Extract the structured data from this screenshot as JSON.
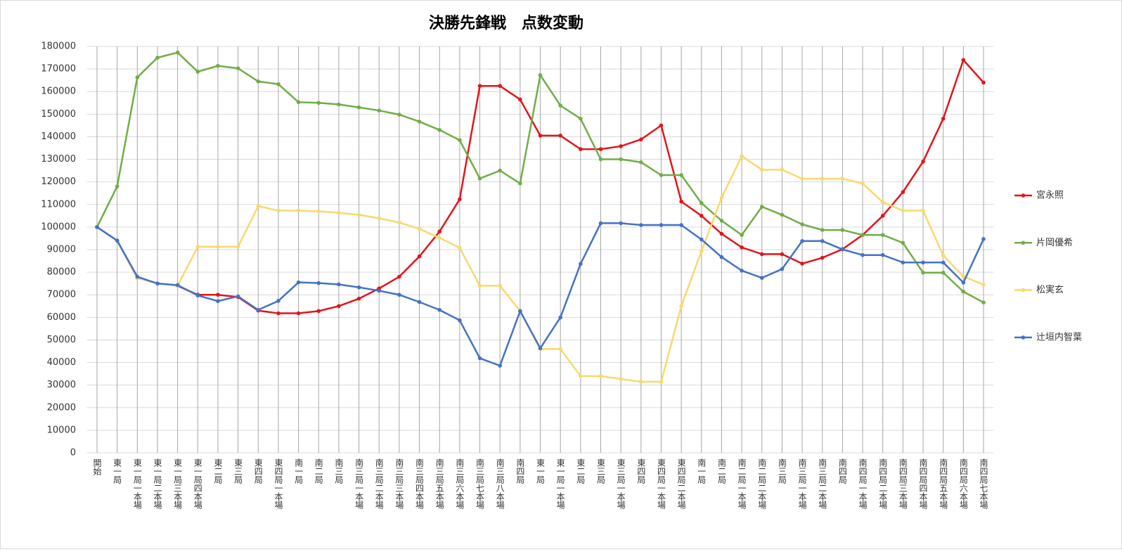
{
  "chart_data": {
    "type": "line",
    "title": "決勝先鋒戦　点数変動",
    "categories": [
      "開始",
      "東一局",
      "東一局一本場",
      "東一局二本場",
      "東一局三本場",
      "東一局四本場",
      "東二局",
      "東三局",
      "東四局",
      "東四局一本場",
      "南一局",
      "南二局",
      "南三局",
      "南三局一本場",
      "南三局二本場",
      "南三局三本場",
      "南三局四本場",
      "南三局五本場",
      "南三局六本場",
      "南三局七本場",
      "南三局八本場",
      "南四局",
      "東一局",
      "東一局一本場",
      "東二局",
      "東三局",
      "東三局一本場",
      "東四局",
      "東四局一本場",
      "東四局二本場",
      "南一局",
      "南二局",
      "南二局一本場",
      "南二局二本場",
      "南三局",
      "南三局一本場",
      "南三局二本場",
      "南四局",
      "南四局一本場",
      "南四局二本場",
      "南四局三本場",
      "南四局四本場",
      "南四局五本場",
      "南四局六本場",
      "南四局七本場"
    ],
    "series": [
      {
        "name": "宮永照",
        "color": "#e3141b",
        "values": [
          100000,
          94000,
          77500,
          75000,
          74000,
          70000,
          70000,
          69000,
          63000,
          61800,
          61800,
          62800,
          65000,
          68300,
          72800,
          78000,
          87000,
          98000,
          112300,
          162500,
          162500,
          156500,
          140500,
          140500,
          134500,
          134500,
          135800,
          138800,
          145000,
          111300,
          105000,
          97000,
          91000,
          88000,
          88000,
          83800,
          86400,
          90200,
          96500,
          105000,
          115500,
          129000,
          148000,
          174000,
          164000
        ]
      },
      {
        "name": "片岡優希",
        "color": "#70ad47",
        "values": [
          100000,
          118000,
          166300,
          175000,
          177300,
          168800,
          171400,
          170300,
          164500,
          163300,
          155300,
          155000,
          154300,
          153000,
          151600,
          149800,
          146700,
          143000,
          138500,
          121500,
          125000,
          119300,
          167300,
          153800,
          148000,
          130000,
          130000,
          128700,
          123000,
          123000,
          110600,
          102800,
          96500,
          109000,
          105400,
          101200,
          98700,
          98700,
          96500,
          96500,
          93000,
          79800,
          79800,
          71400,
          66600
        ]
      },
      {
        "name": "松実玄",
        "color": "#f7d96e",
        "values": [
          100000,
          94000,
          77500,
          75000,
          74000,
          91300,
          91300,
          91300,
          109300,
          107300,
          107300,
          107000,
          106300,
          105400,
          103900,
          102000,
          99200,
          95200,
          90800,
          74000,
          74000,
          62800,
          46000,
          46000,
          34000,
          34000,
          32700,
          31500,
          31500,
          65000,
          89300,
          113000,
          131400,
          125400,
          125400,
          121400,
          121400,
          121400,
          119300,
          111000,
          107300,
          107300,
          87400,
          78100,
          74500
        ]
      },
      {
        "name": "辻垣内智葉",
        "color": "#4472c4",
        "values": [
          100000,
          94000,
          78000,
          75000,
          74300,
          69700,
          67200,
          69300,
          63300,
          67300,
          75500,
          75200,
          74600,
          73300,
          71800,
          70000,
          66800,
          63300,
          58700,
          41900,
          38600,
          62800,
          46300,
          60000,
          83700,
          101700,
          101700,
          100900,
          100900,
          100900,
          94500,
          86700,
          80700,
          77500,
          81400,
          93800,
          93800,
          90100,
          87600,
          87600,
          84300,
          84300,
          84300,
          75400,
          94700
        ]
      }
    ],
    "ylim": [
      0,
      180000
    ],
    "yticks": [
      0,
      10000,
      20000,
      30000,
      40000,
      50000,
      60000,
      70000,
      80000,
      90000,
      100000,
      110000,
      120000,
      130000,
      140000,
      150000,
      160000,
      170000,
      180000
    ],
    "grid": true,
    "legend": "right"
  }
}
